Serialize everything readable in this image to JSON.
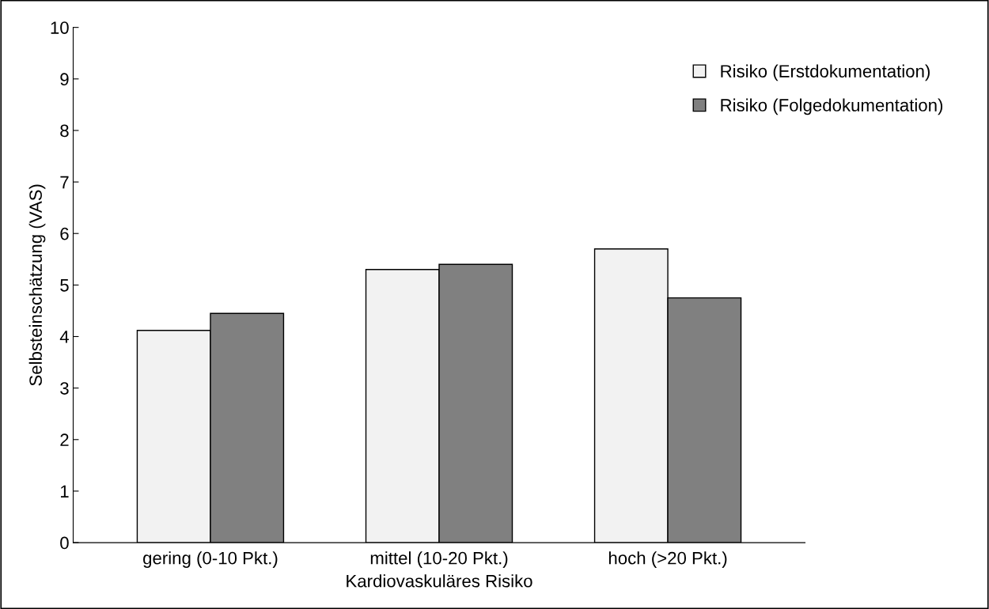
{
  "chart_data": {
    "type": "bar",
    "xlabel": "Kardiovaskuläres Risiko",
    "ylabel": "Selbsteinschätzung (VAS)",
    "categories": [
      "gering (0-10 Pkt.)",
      "mittel (10-20 Pkt.)",
      "hoch (>20 Pkt.)"
    ],
    "series": [
      {
        "name": "Risiko (Erstdokumentation)",
        "color": "#f2f2f2",
        "values": [
          4.12,
          5.3,
          5.7
        ]
      },
      {
        "name": "Risiko (Folgedokumentation)",
        "color": "#808080",
        "values": [
          4.45,
          5.4,
          4.75
        ]
      }
    ],
    "ylim": [
      0,
      10
    ],
    "yticks": [
      0,
      1,
      2,
      3,
      4,
      5,
      6,
      7,
      8,
      9,
      10
    ],
    "grid": false,
    "legend": "top right"
  }
}
